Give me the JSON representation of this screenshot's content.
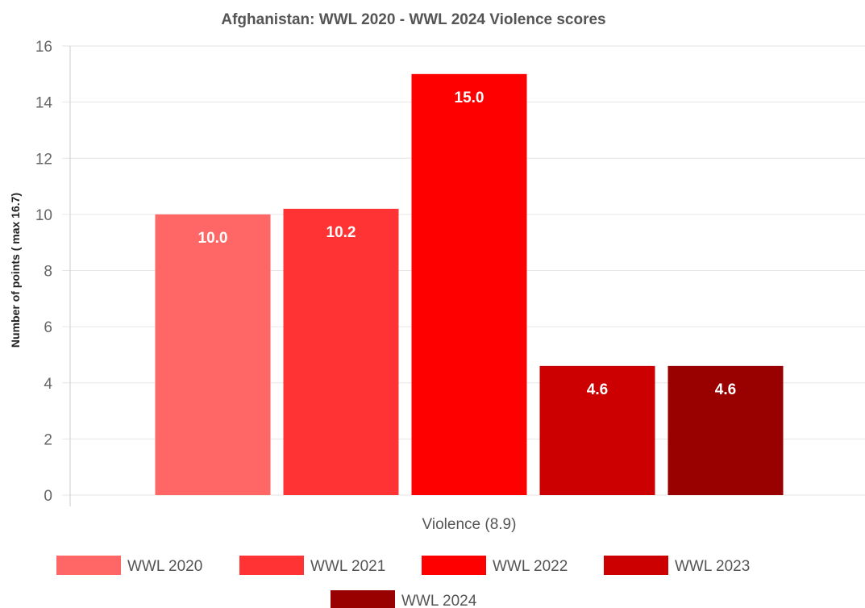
{
  "chart_data": {
    "type": "bar",
    "title": "Afghanistan: WWL 2020 - WWL 2024 Violence scores",
    "xlabel": "",
    "ylabel": "Number of points ( max 16.7)",
    "categories": [
      "Violence (8.9)"
    ],
    "series": [
      {
        "name": "WWL 2020",
        "values": [
          10.0
        ],
        "color": "#ff6666"
      },
      {
        "name": "WWL 2021",
        "values": [
          10.2
        ],
        "color": "#ff3333"
      },
      {
        "name": "WWL 2022",
        "values": [
          15.0
        ],
        "color": "#ff0000"
      },
      {
        "name": "WWL 2023",
        "values": [
          4.6
        ],
        "color": "#cc0000"
      },
      {
        "name": "WWL 2024",
        "values": [
          4.6
        ],
        "color": "#990000"
      }
    ],
    "data_labels": [
      "10.0",
      "10.2",
      "15.0",
      "4.6",
      "4.6"
    ],
    "ylim": [
      0,
      16
    ],
    "yticks": [
      0,
      2,
      4,
      6,
      8,
      10,
      12,
      14,
      16
    ],
    "grid": true,
    "legend_position": "bottom"
  }
}
